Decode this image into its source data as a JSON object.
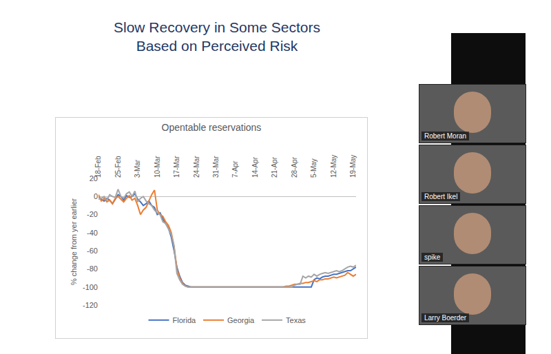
{
  "slide": {
    "title": [
      "Slow Recovery in Some Sectors",
      "Based on Perceived Risk"
    ]
  },
  "chart_data": {
    "type": "line",
    "title": "Opentable reservations",
    "y_label": "% change from yer earlier",
    "categories": [
      "18-Feb",
      null,
      null,
      null,
      null,
      null,
      null,
      "25-Feb",
      null,
      null,
      null,
      null,
      null,
      null,
      "3-Mar",
      null,
      null,
      null,
      null,
      null,
      null,
      "10-Mar",
      null,
      null,
      null,
      null,
      null,
      null,
      "17-Mar",
      null,
      null,
      null,
      null,
      null,
      null,
      "24-Mar",
      null,
      null,
      null,
      null,
      null,
      null,
      "31-Mar",
      null,
      null,
      null,
      null,
      null,
      null,
      "7-Apr",
      null,
      null,
      null,
      null,
      null,
      null,
      "14-Apr",
      null,
      null,
      null,
      null,
      null,
      null,
      "21-Apr",
      null,
      null,
      null,
      null,
      null,
      null,
      "28-Apr",
      null,
      null,
      null,
      null,
      null,
      null,
      "5-May",
      null,
      null,
      null,
      null,
      null,
      null,
      "12-May",
      null,
      null,
      null,
      null,
      null,
      null,
      "19-May",
      null
    ],
    "series": [
      {
        "name": "Florida",
        "color": "#4472c4",
        "values": [
          0,
          -3,
          -5,
          -2,
          -4,
          -8,
          -3,
          2,
          0,
          -4,
          1,
          -1,
          0,
          3,
          -3,
          -6,
          -10,
          -8,
          -5,
          -10,
          -12,
          -20,
          -18,
          -25,
          -30,
          -35,
          -45,
          -60,
          -78,
          -88,
          -95,
          -98,
          -99,
          -100,
          -100,
          -100,
          -100,
          -100,
          -100,
          -100,
          -100,
          -100,
          -100,
          -100,
          -100,
          -100,
          -100,
          -100,
          -100,
          -100,
          -100,
          -100,
          -100,
          -100,
          -100,
          -100,
          -100,
          -100,
          -100,
          -100,
          -100,
          -100,
          -100,
          -100,
          -100,
          -100,
          -100,
          -100,
          -100,
          -100,
          -100,
          -100,
          -100,
          -100,
          -100,
          -100,
          -100,
          -92,
          -90,
          -91,
          -89,
          -88,
          -88,
          -87,
          -86,
          -86,
          -85,
          -84,
          -83,
          -82,
          -82,
          -80,
          -78
        ]
      },
      {
        "name": "Georgia",
        "color": "#ed7d31",
        "values": [
          2,
          -5,
          -2,
          -6,
          -4,
          -8,
          -2,
          0,
          -3,
          -6,
          -2,
          1,
          -4,
          -2,
          -10,
          -20,
          -15,
          -12,
          -5,
          2,
          7,
          -15,
          -20,
          -22,
          -28,
          -32,
          -40,
          -55,
          -80,
          -90,
          -96,
          -99,
          -100,
          -100,
          -100,
          -100,
          -100,
          -100,
          -100,
          -100,
          -100,
          -100,
          -100,
          -100,
          -100,
          -100,
          -100,
          -100,
          -100,
          -100,
          -100,
          -100,
          -100,
          -100,
          -100,
          -100,
          -100,
          -100,
          -100,
          -100,
          -100,
          -100,
          -100,
          -100,
          -100,
          -100,
          -100,
          -99,
          -99,
          -98,
          -97,
          -97,
          -96,
          -96,
          -95,
          -95,
          -94,
          -93,
          -94,
          -92,
          -92,
          -91,
          -91,
          -90,
          -89,
          -90,
          -89,
          -88,
          -87,
          -84,
          -86,
          -88,
          -86
        ]
      },
      {
        "name": "Texas",
        "color": "#a5a5a5",
        "values": [
          -3,
          -2,
          0,
          -4,
          2,
          0,
          -1,
          8,
          0,
          -2,
          3,
          5,
          0,
          6,
          -6,
          -2,
          0,
          -5,
          -8,
          -10,
          -15,
          -18,
          -20,
          -28,
          -30,
          -36,
          -42,
          -55,
          -85,
          -92,
          -97,
          -99,
          -100,
          -100,
          -100,
          -100,
          -100,
          -100,
          -100,
          -100,
          -100,
          -100,
          -100,
          -100,
          -100,
          -100,
          -100,
          -100,
          -100,
          -100,
          -100,
          -100,
          -100,
          -100,
          -100,
          -100,
          -100,
          -100,
          -100,
          -100,
          -100,
          -100,
          -100,
          -100,
          -100,
          -100,
          -100,
          -100,
          -100,
          -100,
          -98,
          -97,
          -97,
          -88,
          -90,
          -88,
          -89,
          -86,
          -88,
          -86,
          -85,
          -84,
          -85,
          -84,
          -83,
          -82,
          -83,
          -82,
          -80,
          -78,
          -77,
          -78,
          -76
        ]
      }
    ],
    "ylim": [
      -120,
      20
    ],
    "yticks": [
      -120,
      -100,
      -80,
      -60,
      -40,
      -20,
      0,
      20
    ],
    "grid": false,
    "legend": "bottom"
  },
  "participants": [
    "Robert Moran",
    "Robert Ikel",
    "spike",
    "Larry Boerder"
  ]
}
